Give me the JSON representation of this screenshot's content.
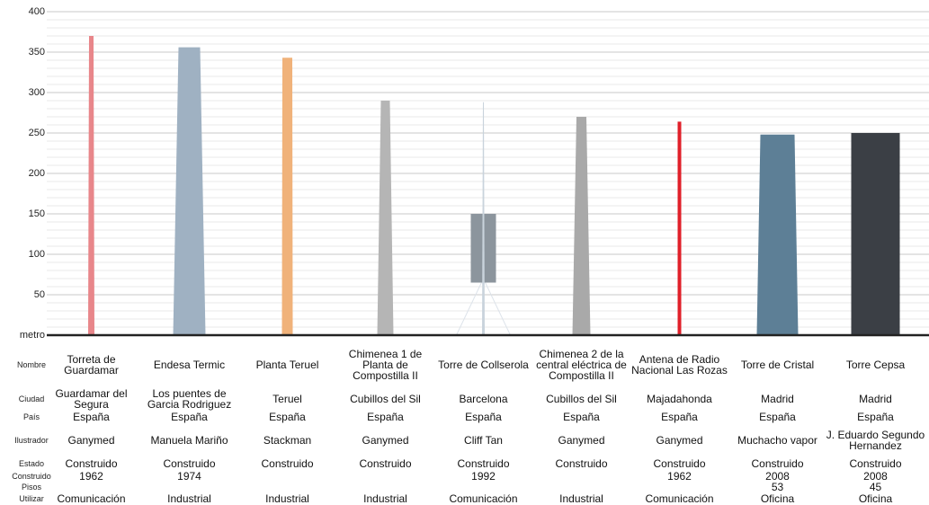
{
  "chart_data": {
    "type": "bar",
    "categories": [
      "Torreta de Guardamar",
      "Endesa Termic",
      "Planta Teruel",
      "Chimenea 1 de Planta de Compostilla II",
      "Torre de Collserola",
      "Chimenea 2 de la central eléctrica de Compostilla II",
      "Antena de Radio Nacional Las Rozas",
      "Torre de Cristal",
      "Torre Cepsa"
    ],
    "values": [
      370,
      356,
      343,
      290,
      288,
      270,
      264,
      248,
      250
    ],
    "colors": [
      "#e8868a",
      "#9fb1c2",
      "#f0b27a",
      "#b5b5b5",
      "#c9d3dc",
      "#a9a9a9",
      "#e0202a",
      "#5d7f96",
      "#3b3f45"
    ],
    "ylim": [
      0,
      400
    ],
    "yticks": [
      {
        "value": 0,
        "label": "metro"
      },
      50,
      100,
      150,
      200,
      250,
      300,
      350,
      400
    ],
    "minor_yticks": [
      10,
      20,
      30,
      40,
      60,
      70,
      80,
      90,
      110,
      120,
      130,
      140,
      160,
      170,
      180,
      190,
      210,
      220,
      230,
      240,
      260,
      270,
      280,
      290,
      310,
      320,
      330,
      340,
      360,
      370,
      380,
      390
    ],
    "grid": true
  },
  "table": {
    "row_labels": [
      "Nombre",
      "Ciudad",
      "País",
      "Ilustrador",
      "Estado",
      "Construido",
      "Pisos",
      "Utilizar"
    ],
    "rows": [
      [
        "Guardamar del Segura",
        "Los puentes de Garcia Rodriguez",
        "Teruel",
        "Cubillos del Sil",
        "Barcelona",
        "Cubillos del Sil",
        "Majadahonda",
        "Madrid",
        "Madrid"
      ],
      [
        "España",
        "España",
        "España",
        "España",
        "España",
        "España",
        "España",
        "España",
        "España"
      ],
      [
        "Ganymed",
        "Manuela Mariño",
        "Stackman",
        "Ganymed",
        "Cliff Tan",
        "Ganymed",
        "Ganymed",
        "Muchacho vapor",
        "J. Eduardo Segundo Hernandez"
      ],
      [
        "Construido",
        "Construido",
        "Construido",
        "Construido",
        "Construido",
        "Construido",
        "Construido",
        "Construido",
        "Construido"
      ],
      [
        1962,
        1974,
        null,
        null,
        1992,
        null,
        1962,
        2008,
        2008
      ],
      [
        null,
        null,
        null,
        null,
        null,
        null,
        null,
        53,
        45
      ],
      [
        "Comunicación",
        "Industrial",
        "Industrial",
        "Industrial",
        "Comunicación",
        "Industrial",
        "Comunicación",
        "Oficina",
        "Oficina"
      ]
    ]
  }
}
